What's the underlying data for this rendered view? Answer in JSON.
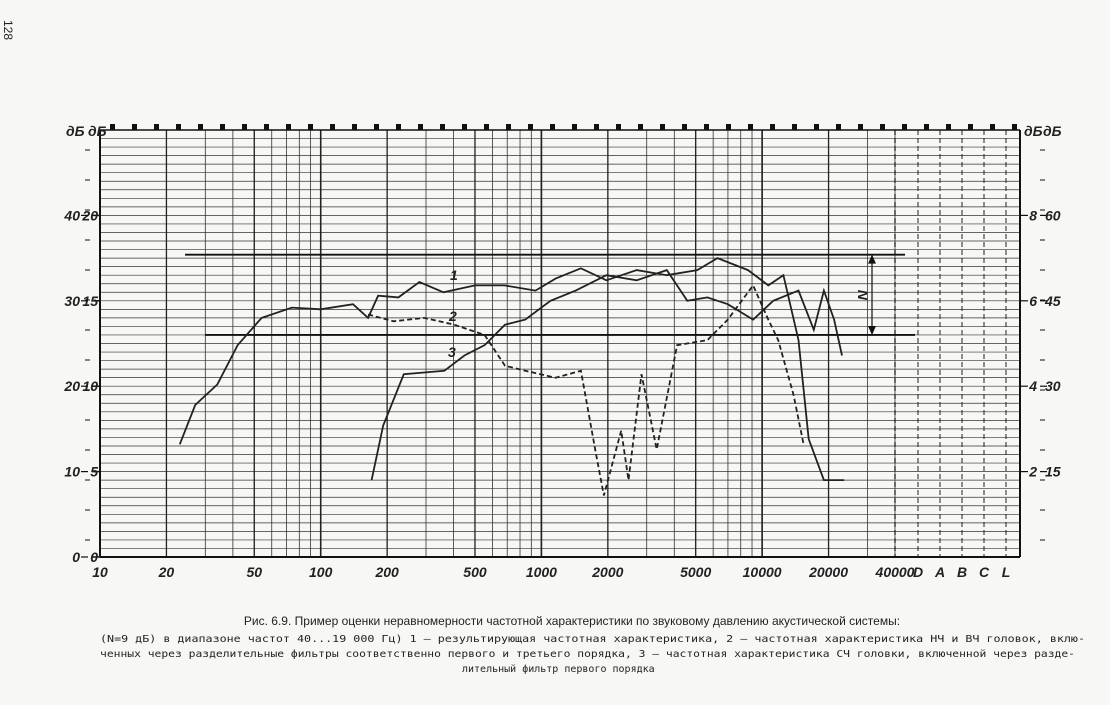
{
  "page_number": "128",
  "chart_data": {
    "type": "line",
    "xscale": "log",
    "xlim": [
      10,
      40000
    ],
    "xticks": [
      10,
      20,
      50,
      100,
      200,
      500,
      1000,
      2000,
      5000,
      10000,
      20000,
      40000
    ],
    "extra_columns": [
      "D",
      "A",
      "B",
      "C",
      "L"
    ],
    "ylim": [
      0,
      25
    ],
    "yticks": [
      0,
      5,
      10,
      15,
      20
    ],
    "ylabel": "дБ",
    "y_outer": {
      "label": "дБ",
      "lim": [
        0,
        50
      ],
      "ticks": [
        0,
        10,
        20,
        30,
        40
      ]
    },
    "y_right1": {
      "label": "дБ",
      "lim": [
        0,
        10
      ],
      "ticks": [
        2,
        4,
        6,
        8
      ]
    },
    "y_right2": {
      "label": "дБ",
      "lim": [
        0,
        75
      ],
      "ticks": [
        15,
        30,
        45,
        60
      ]
    },
    "grid": true,
    "reference_lines": [
      17.7,
      13.0
    ],
    "annotation": "N",
    "series": [
      {
        "name": "1",
        "color": "#222222",
        "dash": false,
        "x": [
          23,
          27,
          34,
          42,
          54,
          74,
          100,
          140,
          164,
          182,
          225,
          280,
          360,
          500,
          680,
          940,
          1160,
          1510,
          1970,
          2700,
          3700,
          5080,
          6280,
          8630,
          10670,
          12480,
          14620,
          16250,
          19050,
          23540
        ],
        "values": [
          6.6,
          8.9,
          10.1,
          12.4,
          14.0,
          14.6,
          14.5,
          14.8,
          14.0,
          15.3,
          15.2,
          16.1,
          15.5,
          15.9,
          15.9,
          15.6,
          16.3,
          16.9,
          16.2,
          16.8,
          16.5,
          16.8,
          17.5,
          16.8,
          15.9,
          16.5,
          12.7,
          6.9,
          4.5,
          4.5
        ]
      },
      {
        "name": "2",
        "color": "#222222",
        "dash": true,
        "x": [
          164,
          214,
          294,
          403,
          553,
          684,
          845,
          1160,
          1510,
          1770,
          1920,
          2300,
          2480,
          2840,
          3330,
          4120,
          5650,
          6990,
          9100,
          10670,
          11830,
          13870,
          15420
        ],
        "values": [
          14.2,
          13.8,
          14.0,
          13.6,
          13.0,
          11.2,
          10.9,
          10.5,
          10.9,
          6.0,
          3.6,
          7.4,
          4.5,
          10.7,
          6.3,
          12.4,
          12.7,
          13.9,
          15.9,
          13.9,
          12.7,
          9.5,
          6.6
        ]
      },
      {
        "name": "3",
        "color": "#222222",
        "dash": false,
        "x": [
          170,
          192,
          238,
          294,
          363,
          448,
          553,
          684,
          845,
          1100,
          1430,
          1970,
          2700,
          3700,
          4580,
          5650,
          6990,
          9100,
          11220,
          14620,
          17140,
          19050,
          21180,
          23010
        ],
        "values": [
          4.5,
          7.7,
          10.7,
          10.8,
          10.9,
          11.8,
          12.4,
          13.6,
          13.9,
          15.0,
          15.6,
          16.5,
          16.2,
          16.8,
          15.0,
          15.2,
          14.8,
          13.9,
          15.0,
          15.6,
          13.3,
          15.6,
          13.9,
          11.8
        ]
      }
    ]
  },
  "caption": {
    "title": "Рис. 6.9. Пример оценки неравномерности частотной характеристики по звуковому давлению акустической системы:",
    "lines": [
      "(N=9 дБ) в диапазоне частот 40...19 000 Гц) 1 — результирующая частотная характеристика, 2 — частотная характеристика НЧ и ВЧ головок, вклю-",
      "ченных через разделительные фильтры соответственно первого и третьего порядка, 3 — частотная характеристика СЧ головки, включенной через разде-",
      "лительный фильтр первого порядка"
    ]
  }
}
